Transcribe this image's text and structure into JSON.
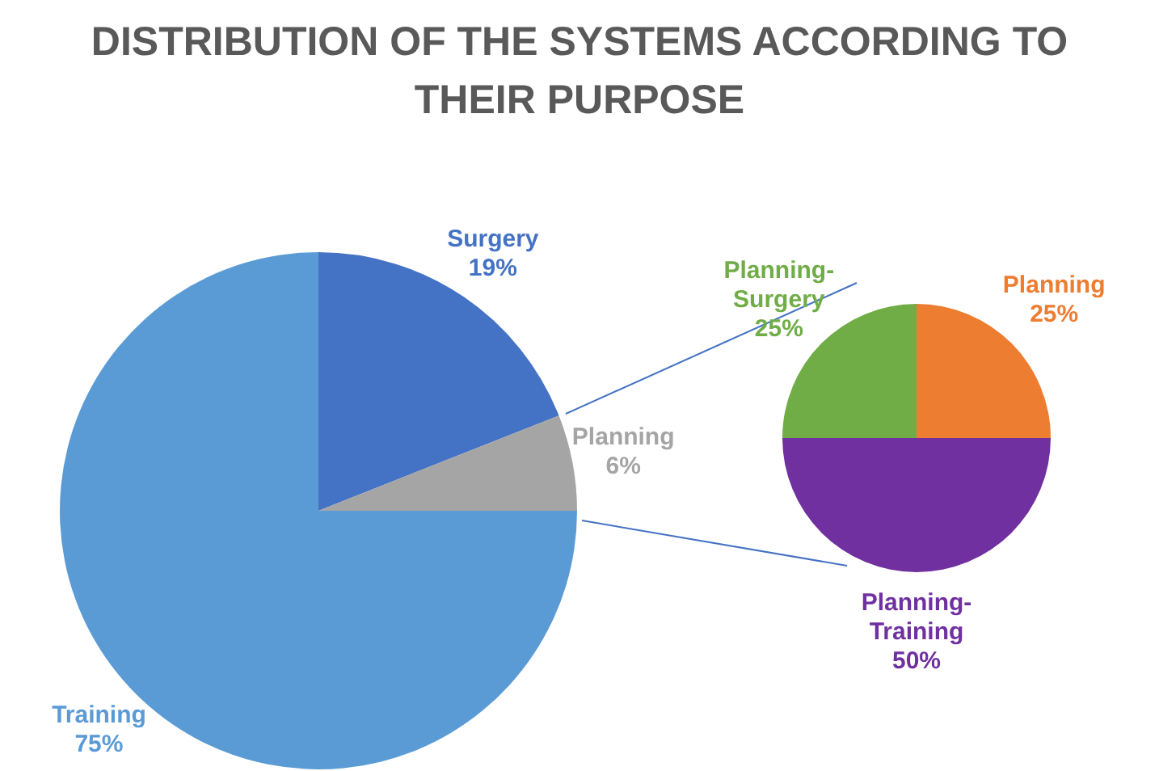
{
  "chart_data": [
    {
      "type": "pie",
      "title": "DISTRIBUTION OF THE SYSTEMS ACCORDING TO THEIR PURPOSE",
      "categories": [
        "Surgery",
        "Planning",
        "Training"
      ],
      "values": [
        19,
        6,
        75
      ],
      "value_labels": [
        "19%",
        "6%",
        "75%"
      ],
      "colors": [
        "#4472c4",
        "#a5a5a5",
        "#5b9bd5"
      ],
      "legend": false
    },
    {
      "type": "pie",
      "categories": [
        "Planning",
        "Planning-Training",
        "Planning-Surgery"
      ],
      "values": [
        25,
        50,
        25
      ],
      "value_labels": [
        "25%",
        "50%",
        "25%"
      ],
      "colors": [
        "#ed7d31",
        "#7030a0",
        "#70ad47"
      ],
      "legend": false
    }
  ]
}
